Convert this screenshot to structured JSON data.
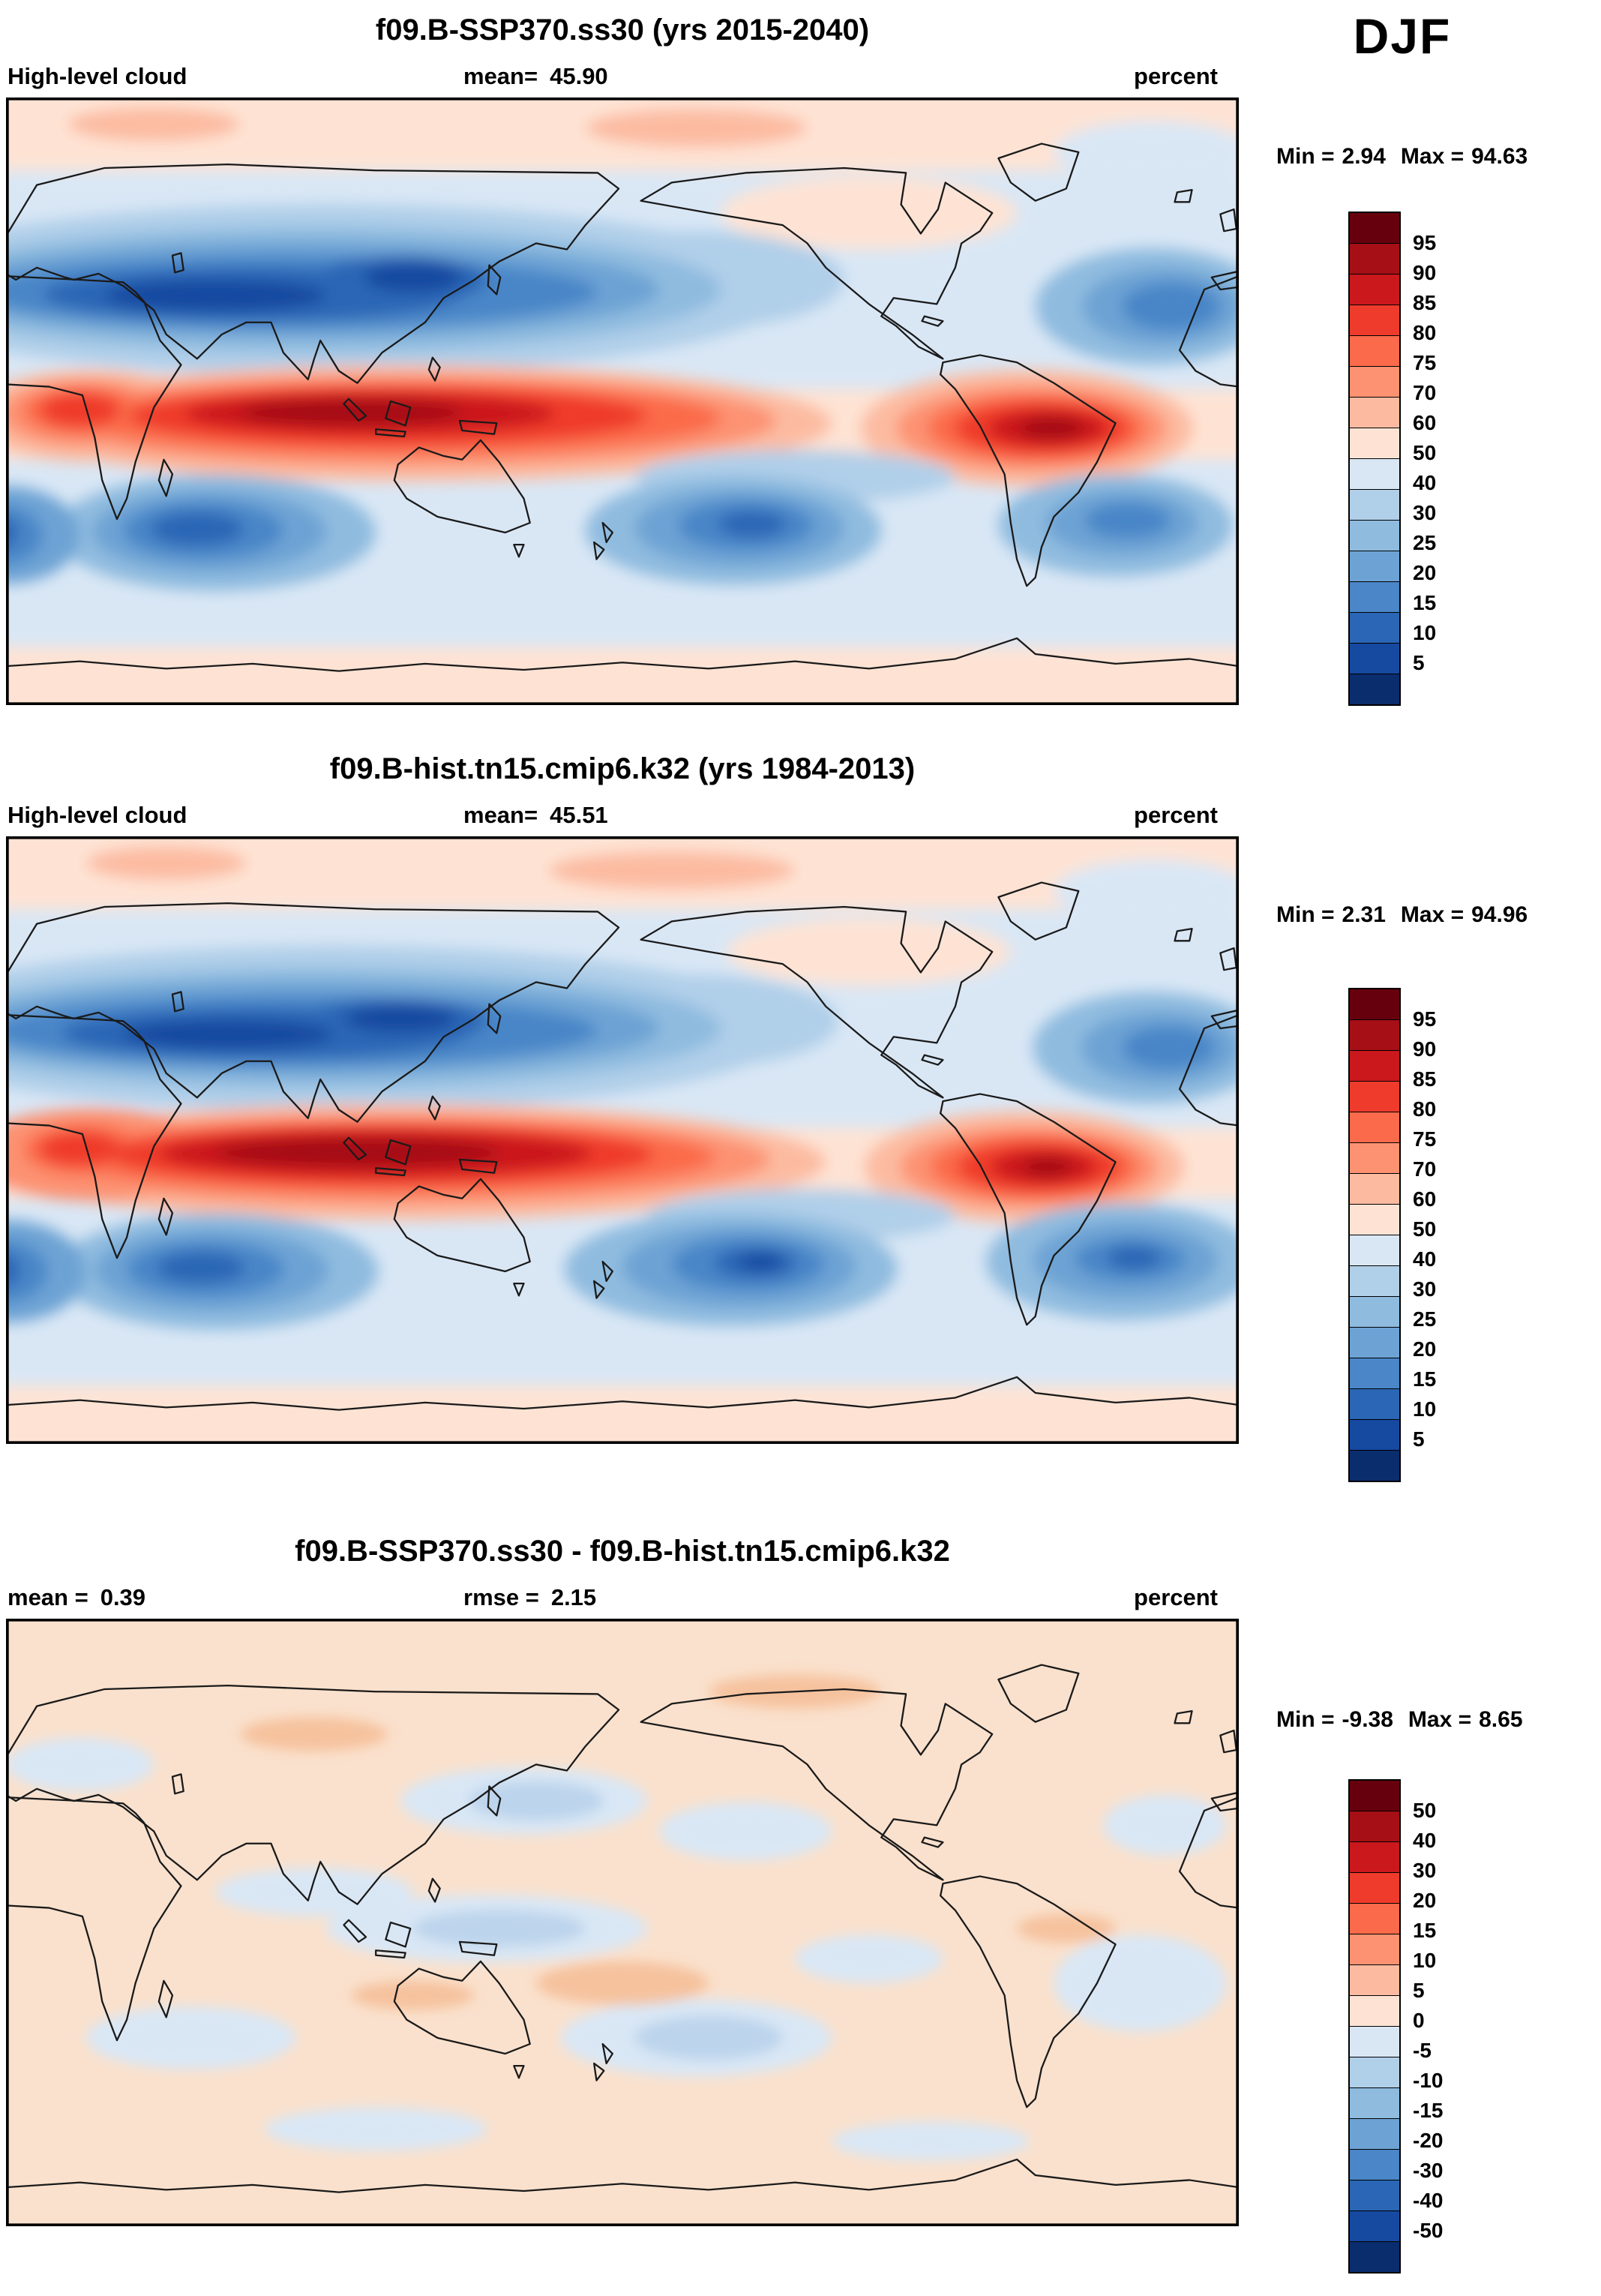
{
  "season_label": "DJF",
  "panels": [
    {
      "title": "f09.B-SSP370.ss30 (yrs 2015-2040)",
      "field_label": "High-level cloud",
      "mean_label": "mean=",
      "mean_value": "45.90",
      "units": "percent",
      "min_label": "Min =",
      "min_value": "2.94",
      "max_label": "Max =",
      "max_value": "94.63"
    },
    {
      "title": "f09.B-hist.tn15.cmip6.k32 (yrs 1984-2013)",
      "field_label": "High-level cloud",
      "mean_label": "mean=",
      "mean_value": "45.51",
      "units": "percent",
      "min_label": "Min =",
      "min_value": "2.31",
      "max_label": "Max =",
      "max_value": "94.96"
    },
    {
      "title": "f09.B-SSP370.ss30 - f09.B-hist.tn15.cmip6.k32",
      "mean_label": "mean =",
      "mean_value": "0.39",
      "rmse_label": "rmse =",
      "rmse_value": "2.15",
      "units": "percent",
      "min_label": "Min =",
      "min_value": "-9.38",
      "max_label": "Max =",
      "max_value": "8.65"
    }
  ],
  "colorbars": {
    "percent": {
      "tick_labels": [
        "95",
        "90",
        "85",
        "80",
        "75",
        "70",
        "60",
        "50",
        "40",
        "30",
        "25",
        "20",
        "15",
        "10",
        "5"
      ],
      "colors": [
        "#67000d",
        "#a50f15",
        "#cb181d",
        "#ef3b2c",
        "#fb6a4a",
        "#fc9272",
        "#fcbba1",
        "#fee3d4",
        "#d9e7f5",
        "#b0cfe9",
        "#8fbbdf",
        "#6da3d4",
        "#4a86c8",
        "#2a66b5",
        "#1649a0",
        "#0a2d6e"
      ]
    },
    "difference": {
      "tick_labels": [
        "50",
        "40",
        "30",
        "20",
        "15",
        "10",
        "5",
        "0",
        "-5",
        "-10",
        "-15",
        "-20",
        "-30",
        "-40",
        "-50"
      ],
      "colors": [
        "#67000d",
        "#a50f15",
        "#cb181d",
        "#ef3b2c",
        "#fb6a4a",
        "#fc9272",
        "#fcbba1",
        "#fee3d4",
        "#d9e7f5",
        "#b0cfe9",
        "#8fbbdf",
        "#6da3d4",
        "#4a86c8",
        "#2a66b5",
        "#1649a0",
        "#0a2d6e"
      ]
    }
  },
  "chart_data": [
    {
      "type": "heatmap",
      "title": "f09.B-SSP370.ss30 (yrs 2015-2040)",
      "variable": "High-level cloud",
      "season": "DJF",
      "units": "percent",
      "mean": 45.9,
      "min": 2.94,
      "max": 94.63,
      "contour_levels": [
        5,
        10,
        15,
        20,
        25,
        30,
        40,
        50,
        60,
        70,
        75,
        80,
        85,
        90,
        95
      ],
      "projection": "global lat-lon map, longitude 0-360E, latitude 90S-90N",
      "legend_position": "right",
      "pattern": "High cloud maxima (>80%) along tropical convergence zones: Africa, Maritime Continent / west Pacific, Amazonia; minima (<15%) in subtropical bands over N Africa-Asia and southern Indian, Pacific and Atlantic oceans"
    },
    {
      "type": "heatmap",
      "title": "f09.B-hist.tn15.cmip6.k32 (yrs 1984-2013)",
      "variable": "High-level cloud",
      "season": "DJF",
      "units": "percent",
      "mean": 45.51,
      "min": 2.31,
      "max": 94.96,
      "contour_levels": [
        5,
        10,
        15,
        20,
        25,
        30,
        40,
        50,
        60,
        70,
        75,
        80,
        85,
        90,
        95
      ],
      "projection": "global lat-lon map, longitude 0-360E, latitude 90S-90N",
      "legend_position": "right",
      "pattern": "Very similar pattern to SSP370 panel; slightly stronger tropical maximum over the Indian Ocean / Maritime Continent"
    },
    {
      "type": "heatmap",
      "title": "f09.B-SSP370.ss30 - f09.B-hist.tn15.cmip6.k32",
      "variable": "High-level cloud difference",
      "season": "DJF",
      "units": "percent",
      "mean": 0.39,
      "rmse": 2.15,
      "min": -9.38,
      "max": 8.65,
      "contour_levels": [
        -50,
        -40,
        -30,
        -20,
        -15,
        -10,
        -5,
        0,
        5,
        10,
        15,
        20,
        30,
        40,
        50
      ],
      "projection": "global lat-lon map, longitude 0-360E, latitude 90S-90N",
      "legend_position": "right",
      "pattern": "Mostly small positive differences (0-5%) with scattered weak negative patches (0 to -10%) over parts of the Pacific, Indian and Atlantic oceans"
    }
  ]
}
